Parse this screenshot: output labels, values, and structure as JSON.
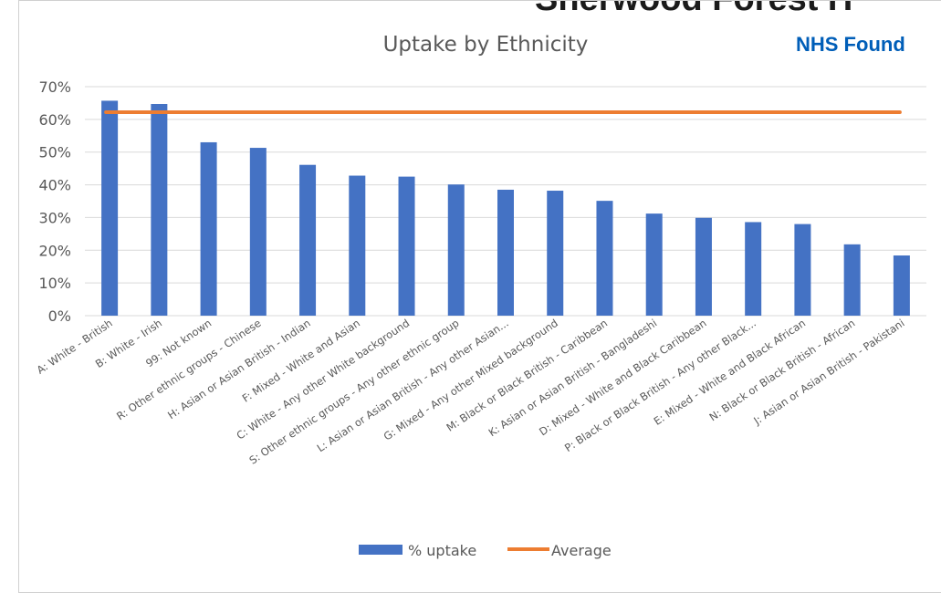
{
  "header": {
    "title": "Sherwood Forest H",
    "subtitle": "NHS Found"
  },
  "colors": {
    "bar": "#4472c4",
    "average": "#ed7d31",
    "grid": "#d9d9d9",
    "text": "#595959"
  },
  "chart_data": {
    "type": "bar",
    "title": "Uptake by Ethnicity",
    "xlabel": "",
    "ylabel": "",
    "ylim": [
      0,
      70
    ],
    "yticks": [
      0,
      10,
      20,
      30,
      40,
      50,
      60,
      70
    ],
    "ytick_suffix": "%",
    "grid": true,
    "legend_position": "bottom",
    "categories": [
      "A: White - British",
      "B: White - Irish",
      "99: Not known",
      "R: Other ethnic groups - Chinese",
      "H: Asian or Asian British - Indian",
      "F: Mixed - White and Asian",
      "C: White - Any other White background",
      "S: Other ethnic groups - Any other ethnic group",
      "L: Asian or Asian British - Any other Asian...",
      "G: Mixed - Any other Mixed background",
      "M: Black or Black British - Caribbean",
      "K: Asian or Asian British - Bangladeshi",
      "D: Mixed - White and Black Caribbean",
      "P: Black or Black British - Any other Black...",
      "E: Mixed - White and Black African",
      "N: Black or Black British - African",
      "J: Asian or Asian British - Pakistani"
    ],
    "series": [
      {
        "name": "% uptake",
        "type": "bar",
        "values": [
          65.7,
          64.7,
          53.0,
          51.3,
          46.1,
          42.8,
          42.5,
          40.1,
          38.5,
          38.2,
          35.1,
          31.2,
          29.9,
          28.6,
          28.0,
          21.8,
          18.4
        ]
      },
      {
        "name": "Average",
        "type": "line",
        "values": [
          62.2,
          62.2,
          62.2,
          62.2,
          62.2,
          62.2,
          62.2,
          62.2,
          62.2,
          62.2,
          62.2,
          62.2,
          62.2,
          62.2,
          62.2,
          62.2,
          62.2
        ]
      }
    ]
  }
}
